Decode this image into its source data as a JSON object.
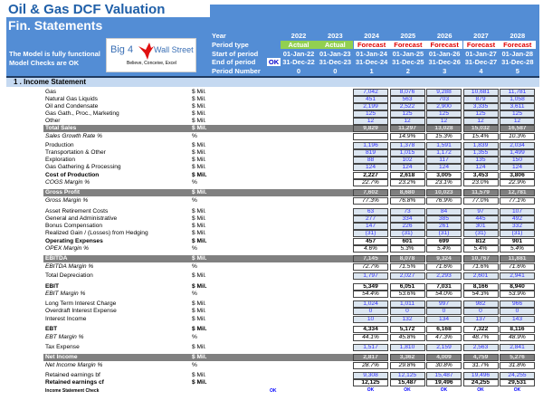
{
  "header": {
    "title": "Oil & Gas DCF Valuation",
    "subtitle": "Fin. Statements",
    "status1": "The Model is fully functional",
    "status2": "Model Checks are OK",
    "logo": "Big 4 Wall Street - Believe, Conceive, Excel",
    "logo_left": "Big 4",
    "logo_right": "Wall Street",
    "logo_tag": "Believe, Conceive, Excel",
    "ok_badge": "OK"
  },
  "periods": {
    "labels": {
      "year": "Year",
      "type": "Period type",
      "start": "Start of period",
      "end": "End of period",
      "number": "Period Number"
    },
    "columns": [
      {
        "year": "2022",
        "type": "Actual",
        "start": "01-Jan-22",
        "end": "31-Dec-22",
        "number": "0"
      },
      {
        "year": "2023",
        "type": "Actual",
        "start": "01-Jan-23",
        "end": "31-Dec-23",
        "number": "0"
      },
      {
        "year": "2024",
        "type": "Forecast",
        "start": "01-Jan-24",
        "end": "31-Dec-24",
        "number": "1"
      },
      {
        "year": "2025",
        "type": "Forecast",
        "start": "01-Jan-25",
        "end": "31-Dec-25",
        "number": "2"
      },
      {
        "year": "2026",
        "type": "Forecast",
        "start": "01-Jan-26",
        "end": "31-Dec-26",
        "number": "3"
      },
      {
        "year": "2027",
        "type": "Forecast",
        "start": "01-Jan-27",
        "end": "31-Dec-27",
        "number": "4"
      },
      {
        "year": "2028",
        "type": "Forecast",
        "start": "01-Jan-28",
        "end": "31-Dec-28",
        "number": "5"
      }
    ]
  },
  "colors": {
    "header_blue": "#538dd5",
    "actual_green": "#92d050",
    "forecast_red": "#e00000",
    "input_blue": "#3333ff"
  },
  "section": "1 . Income Statement",
  "rows": [
    {
      "label": "Gas",
      "unit": "$ Mil.",
      "style": "input",
      "values": [
        "7,042",
        "8,076",
        "9,288",
        "10,681",
        "11,781"
      ]
    },
    {
      "label": "Natural Gas Liquids",
      "unit": "$ Mil.",
      "style": "input",
      "values": [
        "451",
        "563",
        "703",
        "879",
        "1,058"
      ]
    },
    {
      "label": "Oil and Condensate",
      "unit": "$ Mil.",
      "style": "input",
      "values": [
        "2,199",
        "2,522",
        "2,900",
        "3,335",
        "3,611"
      ]
    },
    {
      "label": "Gas Gath., Proc., Marketing",
      "unit": "$ Mil.",
      "style": "input",
      "values": [
        "125",
        "125",
        "125",
        "125",
        "125"
      ]
    },
    {
      "label": "Other",
      "unit": "$ Mil.",
      "style": "input",
      "values": [
        "12",
        "12",
        "12",
        "12",
        "12"
      ]
    },
    {
      "label": "Total Sales",
      "unit": "$ Mil.",
      "style": "hl",
      "values": [
        "9,829",
        "11,297",
        "13,028",
        "15,032",
        "16,587"
      ]
    },
    {
      "label": "Sales Growth Rate %",
      "unit": "%",
      "style": "pct",
      "values": [
        "",
        "14.9%",
        "15.3%",
        "15.4%",
        "10.3%"
      ]
    },
    {
      "label": "Production",
      "unit": "$ Mil.",
      "style": "input",
      "values": [
        "1,196",
        "1,378",
        "1,591",
        "1,839",
        "2,034"
      ]
    },
    {
      "label": "Transportation & Other",
      "unit": "$ Mil.",
      "style": "input",
      "values": [
        "819",
        "1,015",
        "1,172",
        "1,355",
        "1,499"
      ]
    },
    {
      "label": "Exploration",
      "unit": "$ Mil.",
      "style": "input",
      "values": [
        "88",
        "102",
        "117",
        "135",
        "150"
      ]
    },
    {
      "label": "Gas Gathering & Processing",
      "unit": "$ Mil.",
      "style": "input",
      "values": [
        "124",
        "124",
        "124",
        "124",
        "124"
      ]
    },
    {
      "label": "Cost of Production",
      "unit": "$ Mil.",
      "style": "bold",
      "values": [
        "2,227",
        "2,618",
        "3,005",
        "3,453",
        "3,806"
      ]
    },
    {
      "label": "COGS Margin %",
      "unit": "%",
      "style": "pct",
      "values": [
        "22.7%",
        "23.2%",
        "23.1%",
        "23.0%",
        "22.9%"
      ]
    },
    {
      "label": "Gross Profit",
      "unit": "$ Mil.",
      "style": "hl",
      "values": [
        "7,602",
        "8,680",
        "10,023",
        "11,579",
        "12,781"
      ]
    },
    {
      "label": "Gross Margin %",
      "unit": "%",
      "style": "pct",
      "values": [
        "77.3%",
        "76.8%",
        "76.9%",
        "77.0%",
        "77.1%"
      ]
    },
    {
      "label": "Asset Retirement Costs",
      "unit": "$ Mil.",
      "style": "input",
      "values": [
        "63",
        "73",
        "84",
        "97",
        "107"
      ]
    },
    {
      "label": "General and Administrative",
      "unit": "$ Mil.",
      "style": "input",
      "values": [
        "277",
        "334",
        "385",
        "445",
        "492"
      ]
    },
    {
      "label": "Bonus Compensation",
      "unit": "$ Mil.",
      "style": "input",
      "values": [
        "147",
        "226",
        "261",
        "301",
        "332"
      ]
    },
    {
      "label": "Realized Gain / (Losses) from Hedging",
      "unit": "$ Mil.",
      "style": "input",
      "values": [
        "(31)",
        "(31)",
        "(31)",
        "(31)",
        "(31)"
      ]
    },
    {
      "label": "Operating Expenses",
      "unit": "$ Mil.",
      "style": "bold",
      "values": [
        "457",
        "601",
        "699",
        "812",
        "901"
      ]
    },
    {
      "label": "OPEX Margin %",
      "unit": "%",
      "style": "pct",
      "values": [
        "4.6%",
        "5.3%",
        "5.4%",
        "5.4%",
        "5.4%"
      ]
    },
    {
      "label": "EBITDA",
      "unit": "$ Mil.",
      "style": "hl",
      "values": [
        "7,145",
        "8,078",
        "9,324",
        "10,767",
        "11,881"
      ]
    },
    {
      "label": "EBITDA Margin %",
      "unit": "%",
      "style": "pct",
      "values": [
        "72.7%",
        "71.5%",
        "71.6%",
        "71.6%",
        "71.6%"
      ]
    },
    {
      "label": "Total Depreciation",
      "unit": "$ Mil.",
      "style": "input",
      "values": [
        "1,797",
        "2,027",
        "2,293",
        "2,601",
        "2,941"
      ]
    },
    {
      "label": "EBIT",
      "unit": "$ Mil.",
      "style": "bold",
      "values": [
        "5,349",
        "6,051",
        "7,031",
        "8,166",
        "8,940"
      ]
    },
    {
      "label": "EBIT Margin %",
      "unit": "%",
      "style": "pct",
      "values": [
        "54.4%",
        "53.6%",
        "54.0%",
        "54.3%",
        "53.9%"
      ]
    },
    {
      "label": "Long Term Interest Charge",
      "unit": "$ Mil.",
      "style": "input",
      "values": [
        "1,024",
        "1,011",
        "997",
        "982",
        "966"
      ]
    },
    {
      "label": "Overdraft Interest Expense",
      "unit": "$ Mil.",
      "style": "input",
      "values": [
        "0",
        "0",
        "0",
        "0",
        "0"
      ]
    },
    {
      "label": "Interest Income",
      "unit": "$ Mil.",
      "style": "input",
      "values": [
        "10",
        "132",
        "134",
        "137",
        "143"
      ]
    },
    {
      "label": "EBT",
      "unit": "$ Mil.",
      "style": "bold",
      "values": [
        "4,334",
        "5,172",
        "6,168",
        "7,322",
        "8,116"
      ]
    },
    {
      "label": "EBT Margin %",
      "unit": "%",
      "style": "pct",
      "values": [
        "44.1%",
        "45.8%",
        "47.3%",
        "48.7%",
        "48.9%"
      ]
    },
    {
      "label": "Tax Expense",
      "unit": "$ Mil.",
      "style": "input",
      "values": [
        "1,517",
        "1,810",
        "2,159",
        "2,563",
        "2,841"
      ]
    },
    {
      "label": "Net Income",
      "unit": "$ Mil.",
      "style": "hl",
      "values": [
        "2,817",
        "3,362",
        "4,009",
        "4,759",
        "5,276"
      ]
    },
    {
      "label": "Net Income Margin %",
      "unit": "%",
      "style": "pct",
      "values": [
        "28.7%",
        "29.8%",
        "30.8%",
        "31.7%",
        "31.8%"
      ]
    },
    {
      "label": "Retained earnings bf",
      "unit": "$ Mil.",
      "style": "input",
      "values": [
        "9,308",
        "12,125",
        "15,487",
        "19,496",
        "24,255"
      ]
    },
    {
      "label": "Retained earnings cf",
      "unit": "$ Mil.",
      "style": "bold",
      "values": [
        "12,125",
        "15,487",
        "19,496",
        "24,255",
        "29,531"
      ]
    },
    {
      "label": "Income Statement Check",
      "unit": "",
      "style": "chk",
      "first": "OK",
      "values": [
        "OK",
        "OK",
        "OK",
        "OK",
        "OK"
      ]
    }
  ]
}
